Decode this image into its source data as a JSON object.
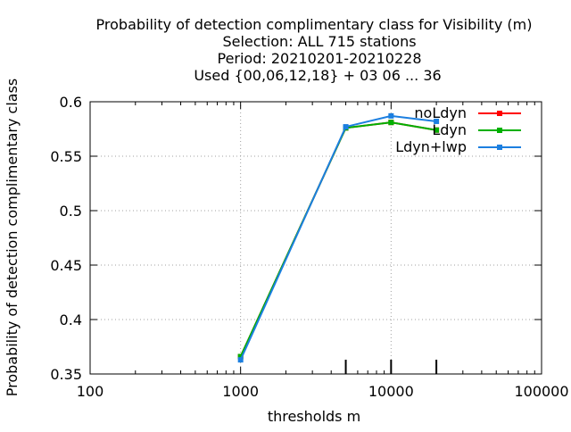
{
  "chart_data": {
    "type": "line",
    "title_lines": [
      "Probability of detection complimentary class  for Visibility (m)",
      "Selection: ALL    715 stations",
      "Period: 20210201-20210228",
      "Used {00,06,12,18} + 03 06 ... 36"
    ],
    "xlabel": "thresholds m",
    "ylabel": "Probability of detection complimentary class",
    "x_scale": "log",
    "xlim": [
      100,
      100000
    ],
    "ylim": [
      0.35,
      0.6
    ],
    "x_ticks": [
      100,
      1000,
      10000,
      100000
    ],
    "x_tick_labels": [
      "100",
      "1000",
      "10000",
      "100000"
    ],
    "y_ticks": [
      0.35,
      0.4,
      0.45,
      0.5,
      0.55,
      0.6
    ],
    "y_tick_labels": [
      "0.35",
      "0.4",
      "0.45",
      "0.5",
      "0.55",
      "0.6"
    ],
    "grid": true,
    "legend_position": "top-right",
    "threshold_markers": [
      5000,
      10000,
      20000
    ],
    "series": [
      {
        "name": "noLdyn",
        "color": "#ff0000",
        "x": [
          1000,
          5000,
          10000,
          20000
        ],
        "y": [
          0.366,
          0.576,
          0.581,
          0.574
        ]
      },
      {
        "name": "Ldyn",
        "color": "#00b000",
        "x": [
          1000,
          5000,
          10000,
          20000
        ],
        "y": [
          0.366,
          0.576,
          0.581,
          0.574
        ]
      },
      {
        "name": "Ldyn+lwp",
        "color": "#1c7fe0",
        "x": [
          1000,
          5000,
          10000,
          20000
        ],
        "y": [
          0.363,
          0.577,
          0.587,
          0.582
        ]
      }
    ]
  }
}
